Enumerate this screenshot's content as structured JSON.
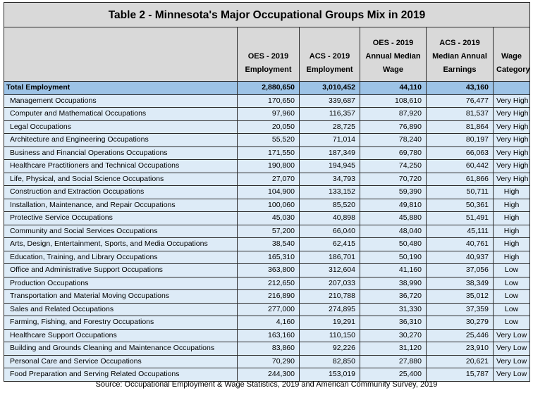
{
  "title": "Table 2 - Minnesota's Major Occupational Groups Mix in 2019",
  "columns": [
    {
      "line1": "OES - 2019",
      "line2": "Employment",
      "line3": ""
    },
    {
      "line1": "ACS - 2019",
      "line2": "Employment",
      "line3": ""
    },
    {
      "line1": "OES - 2019",
      "line2": "Annual Median",
      "line3": "Wage"
    },
    {
      "line1": "ACS - 2019",
      "line2": "Median Annual",
      "line3": "Earnings"
    },
    {
      "line1": "Wage",
      "line2": "Category",
      "line3": ""
    }
  ],
  "total": {
    "name": "Total Employment",
    "oes_emp": "2,880,650",
    "acs_emp": "3,010,452",
    "oes_wage": "44,110",
    "acs_earn": "43,160",
    "category": ""
  },
  "rows": [
    {
      "name": "Management Occupations",
      "oes_emp": "170,650",
      "acs_emp": "339,687",
      "oes_wage": "108,610",
      "acs_earn": "76,477",
      "category": "Very High"
    },
    {
      "name": "Computer and Mathematical Occupations",
      "oes_emp": "97,960",
      "acs_emp": "116,357",
      "oes_wage": "87,920",
      "acs_earn": "81,537",
      "category": "Very High"
    },
    {
      "name": "Legal Occupations",
      "oes_emp": "20,050",
      "acs_emp": "28,725",
      "oes_wage": "76,890",
      "acs_earn": "81,864",
      "category": "Very High"
    },
    {
      "name": "Architecture and Engineering Occupations",
      "oes_emp": "55,520",
      "acs_emp": "71,014",
      "oes_wage": "78,240",
      "acs_earn": "80,197",
      "category": "Very High"
    },
    {
      "name": "Business and Financial Operations Occupations",
      "oes_emp": "171,550",
      "acs_emp": "187,349",
      "oes_wage": "69,780",
      "acs_earn": "66,063",
      "category": "Very High"
    },
    {
      "name": "Healthcare Practitioners and Technical Occupations",
      "oes_emp": "190,800",
      "acs_emp": "194,945",
      "oes_wage": "74,250",
      "acs_earn": "60,442",
      "category": "Very High"
    },
    {
      "name": "Life, Physical, and Social Science Occupations",
      "oes_emp": "27,070",
      "acs_emp": "34,793",
      "oes_wage": "70,720",
      "acs_earn": "61,866",
      "category": "Very High"
    },
    {
      "name": "Construction and Extraction Occupations",
      "oes_emp": "104,900",
      "acs_emp": "133,152",
      "oes_wage": "59,390",
      "acs_earn": "50,711",
      "category": "High"
    },
    {
      "name": "Installation, Maintenance, and Repair Occupations",
      "oes_emp": "100,060",
      "acs_emp": "85,520",
      "oes_wage": "49,810",
      "acs_earn": "50,361",
      "category": "High"
    },
    {
      "name": "Protective Service Occupations",
      "oes_emp": "45,030",
      "acs_emp": "40,898",
      "oes_wage": "45,880",
      "acs_earn": "51,491",
      "category": "High"
    },
    {
      "name": "Community and Social Services Occupations",
      "oes_emp": "57,200",
      "acs_emp": "66,040",
      "oes_wage": "48,040",
      "acs_earn": "45,111",
      "category": "High"
    },
    {
      "name": "Arts, Design, Entertainment, Sports, and Media Occupations",
      "oes_emp": "38,540",
      "acs_emp": "62,415",
      "oes_wage": "50,480",
      "acs_earn": "40,761",
      "category": "High"
    },
    {
      "name": "Education, Training, and Library Occupations",
      "oes_emp": "165,310",
      "acs_emp": "186,701",
      "oes_wage": "50,190",
      "acs_earn": "40,937",
      "category": "High"
    },
    {
      "name": "Office and Administrative Support Occupations",
      "oes_emp": "363,800",
      "acs_emp": "312,604",
      "oes_wage": "41,160",
      "acs_earn": "37,056",
      "category": "Low"
    },
    {
      "name": "Production Occupations",
      "oes_emp": "212,650",
      "acs_emp": "207,033",
      "oes_wage": "38,990",
      "acs_earn": "38,349",
      "category": "Low"
    },
    {
      "name": "Transportation and Material Moving Occupations",
      "oes_emp": "216,890",
      "acs_emp": "210,788",
      "oes_wage": "36,720",
      "acs_earn": "35,012",
      "category": "Low"
    },
    {
      "name": "Sales and Related Occupations",
      "oes_emp": "277,000",
      "acs_emp": "274,895",
      "oes_wage": "31,330",
      "acs_earn": "37,359",
      "category": "Low"
    },
    {
      "name": "Farming, Fishing, and Forestry Occupations",
      "oes_emp": "4,160",
      "acs_emp": "19,291",
      "oes_wage": "36,310",
      "acs_earn": "30,279",
      "category": "Low"
    },
    {
      "name": "Healthcare Support Occupations",
      "oes_emp": "163,160",
      "acs_emp": "110,150",
      "oes_wage": "30,270",
      "acs_earn": "25,446",
      "category": "Very Low"
    },
    {
      "name": "Building and Grounds Cleaning and Maintenance Occupations",
      "oes_emp": "83,860",
      "acs_emp": "92,226",
      "oes_wage": "31,120",
      "acs_earn": "23,910",
      "category": "Very Low"
    },
    {
      "name": "Personal Care and Service Occupations",
      "oes_emp": "70,290",
      "acs_emp": "82,850",
      "oes_wage": "27,880",
      "acs_earn": "20,621",
      "category": "Very Low"
    },
    {
      "name": "Food Preparation and Serving Related Occupations",
      "oes_emp": "244,300",
      "acs_emp": "153,019",
      "oes_wage": "25,400",
      "acs_earn": "15,787",
      "category": "Very Low"
    }
  ],
  "source": "Source: Occupational Employment & Wage Statistics, 2019 and American Community Survey, 2019",
  "colors": {
    "header_bg": "#d9d9d9",
    "total_row_bg": "#9dc3e6",
    "row_bg": "#ddebf7",
    "border": "#2b2b2b"
  }
}
